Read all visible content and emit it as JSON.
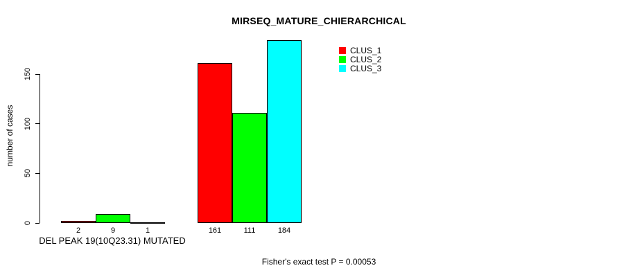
{
  "chart_data": {
    "type": "bar",
    "title": "MIRSEQ_MATURE_CHIERARCHICAL",
    "ylabel": "number of cases",
    "xlabel": "DEL PEAK 19(10Q23.31) MUTATED",
    "footnote": "Fisher's exact test P = 0.00053",
    "yticks": [
      0,
      50,
      100,
      150
    ],
    "ylim": [
      0,
      184
    ],
    "grid": false,
    "legend_position": "top-right",
    "categories": [
      "DEL PEAK 19(10Q23.31) MUTATED",
      ""
    ],
    "series": [
      {
        "name": "CLUS_1",
        "color": "#ff0000",
        "values": [
          2,
          161
        ]
      },
      {
        "name": "CLUS_2",
        "color": "#00ff00",
        "values": [
          9,
          111
        ]
      },
      {
        "name": "CLUS_3",
        "color": "#00ffff",
        "values": [
          1,
          184
        ]
      }
    ],
    "bar_value_labels": {
      "group_1": [
        "2",
        "9",
        "1"
      ],
      "group_2": [
        "161",
        "111",
        "184"
      ]
    }
  }
}
